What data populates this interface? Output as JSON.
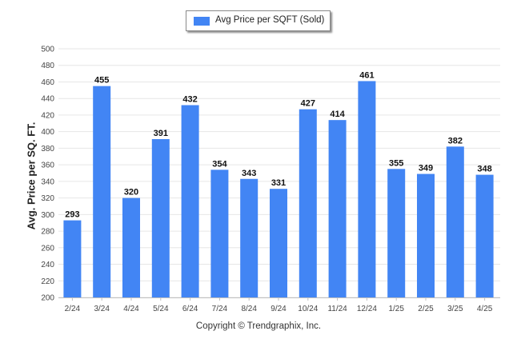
{
  "chart_data": {
    "type": "bar",
    "title": "",
    "xlabel": "",
    "ylabel": "Avg. Price per SQ. FT.",
    "categories": [
      "2/24",
      "3/24",
      "4/24",
      "5/24",
      "6/24",
      "7/24",
      "8/24",
      "9/24",
      "10/24",
      "11/24",
      "12/24",
      "1/25",
      "2/25",
      "3/25",
      "4/25"
    ],
    "series": [
      {
        "name": "Avg Price per SQFT (Sold)",
        "values": [
          293,
          455,
          320,
          391,
          432,
          354,
          343,
          331,
          427,
          414,
          461,
          355,
          349,
          382,
          348
        ],
        "color": "#4285f4"
      }
    ],
    "ylim": [
      200,
      500
    ],
    "yticks": [
      200,
      220,
      240,
      260,
      280,
      300,
      320,
      340,
      360,
      380,
      400,
      420,
      440,
      460,
      480,
      500
    ],
    "grid": true,
    "legend_position": "top-center",
    "data_labels": true
  },
  "footer": {
    "copyright": "Copyright © Trendgraphix, Inc."
  }
}
